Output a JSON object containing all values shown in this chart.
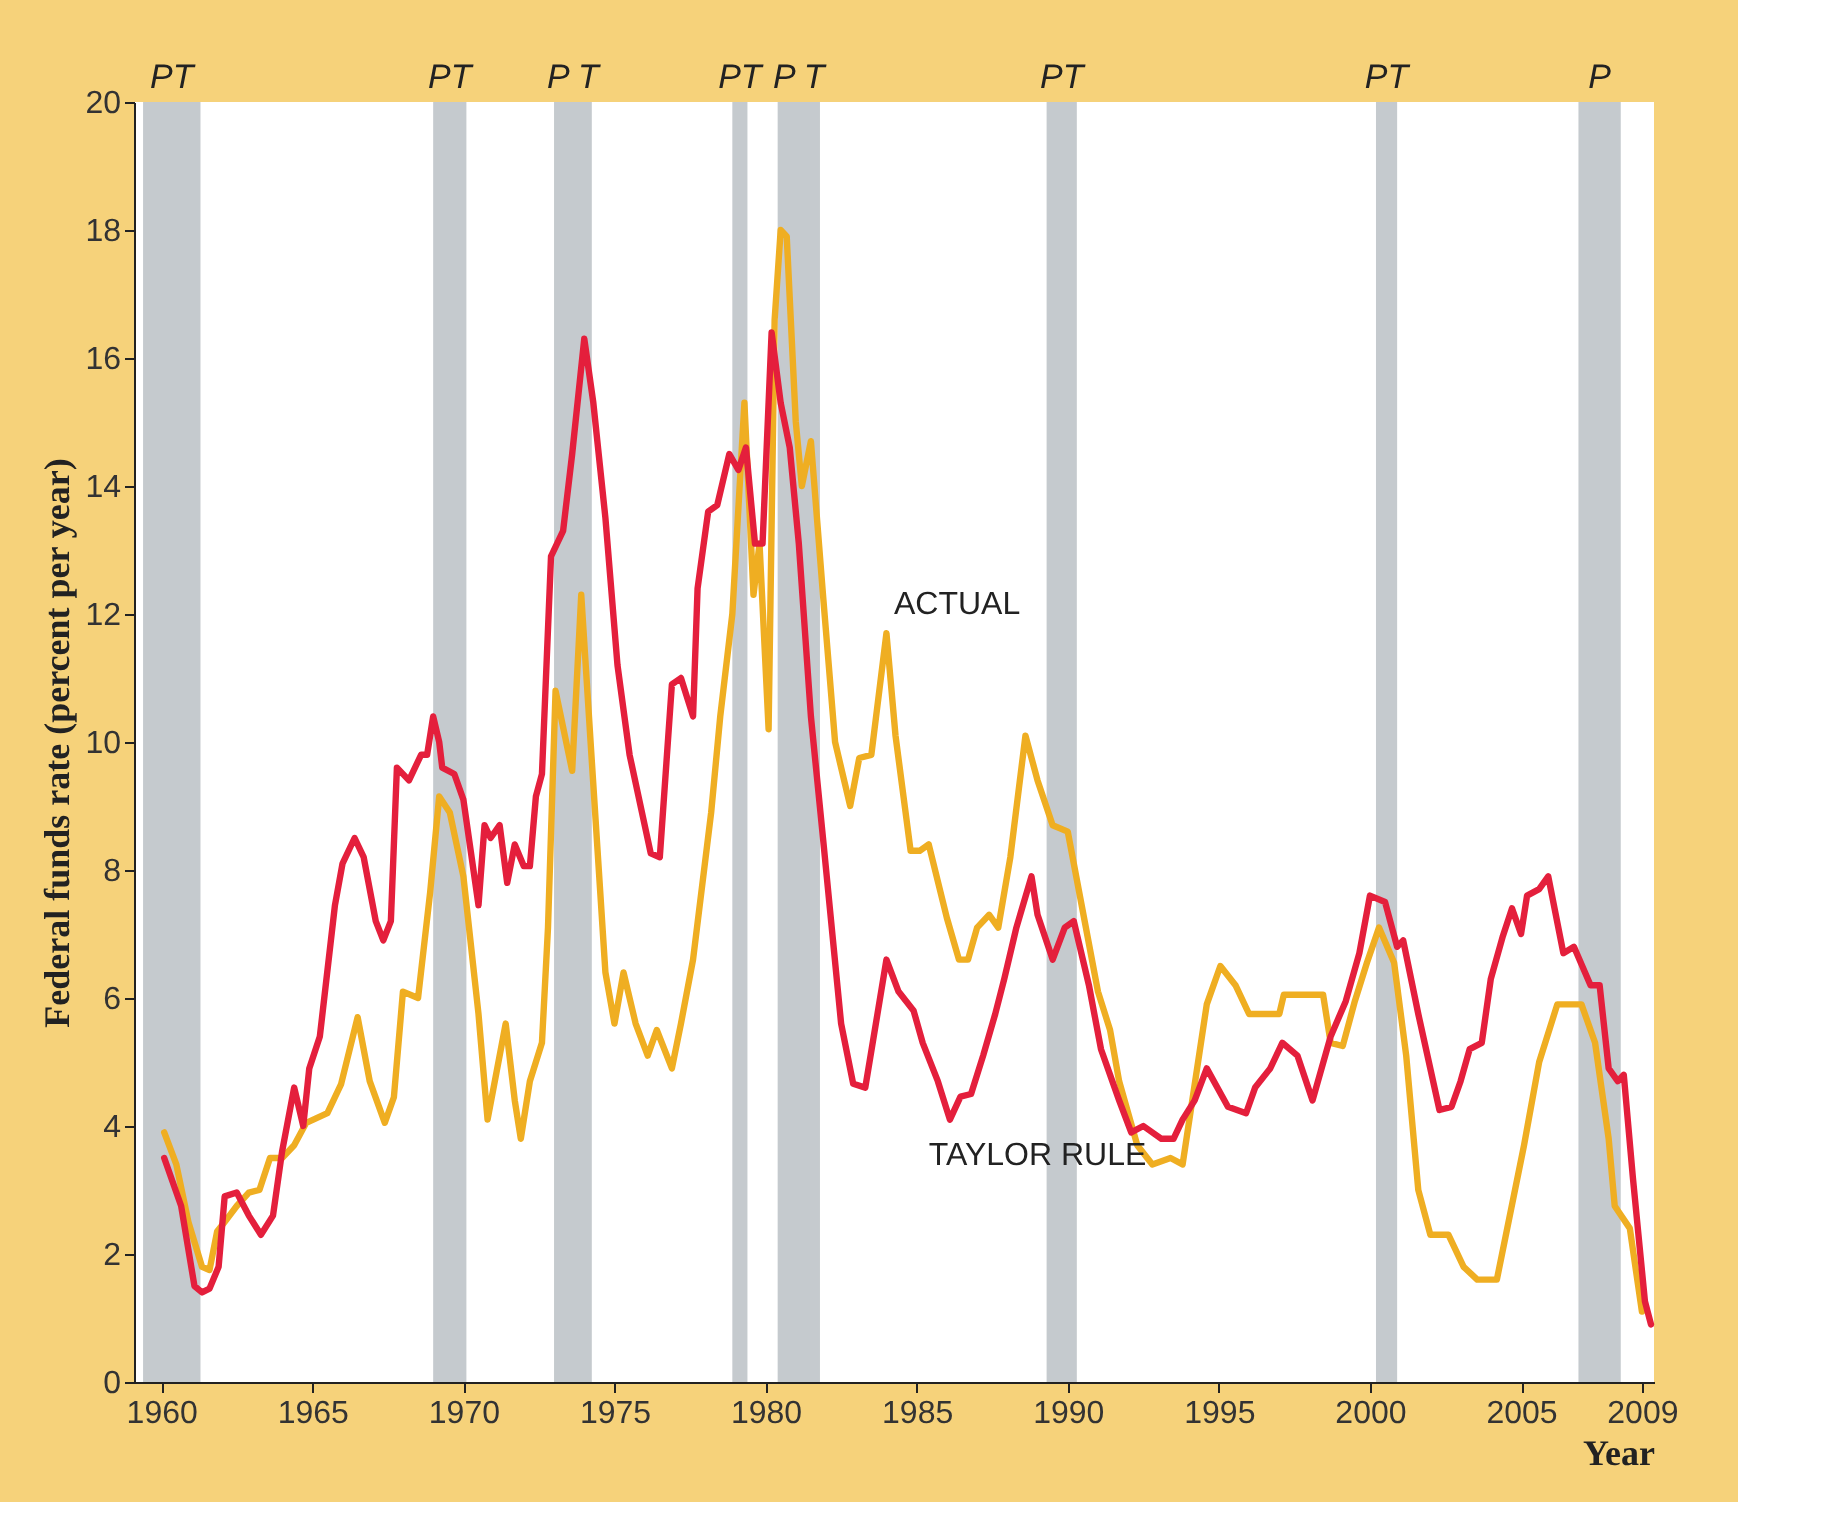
{
  "chart_data": {
    "type": "line",
    "xlabel": "Year",
    "ylabel": "Federal funds rate (percent per year)",
    "xlim": [
      1959.1,
      2009.4
    ],
    "xticks": [
      1960,
      1965,
      1970,
      1975,
      1980,
      1985,
      1990,
      1995,
      2000,
      2005,
      2009
    ],
    "ylim": [
      0,
      20
    ],
    "yticks": [
      0,
      2,
      4,
      6,
      8,
      10,
      12,
      14,
      16,
      18,
      20
    ],
    "grid": false,
    "marker": "none",
    "line_style": "solid",
    "bands": [
      {
        "axis": "x",
        "from": 1959.4,
        "to": 1961.3,
        "label": "PT",
        "color": "#c5cace"
      },
      {
        "axis": "x",
        "from": 1969.0,
        "to": 1970.1,
        "label": "PT",
        "color": "#c5cace"
      },
      {
        "axis": "x",
        "from": 1973.0,
        "to": 1974.25,
        "label": "P T",
        "color": "#c5cace"
      },
      {
        "axis": "x",
        "from": 1978.9,
        "to": 1979.4,
        "label": "PT",
        "color": "#c5cace"
      },
      {
        "axis": "x",
        "from": 1980.4,
        "to": 1981.8,
        "label": "P T",
        "color": "#c5cace"
      },
      {
        "axis": "x",
        "from": 1989.3,
        "to": 1990.3,
        "label": "PT",
        "color": "#c5cace"
      },
      {
        "axis": "x",
        "from": 2000.2,
        "to": 2000.9,
        "label": "PT",
        "color": "#c5cace"
      },
      {
        "axis": "x",
        "from": 2006.9,
        "to": 2008.3,
        "label": "P",
        "color": "#c5cace"
      }
    ],
    "series": [
      {
        "name": "ACTUAL",
        "color": "#efae22",
        "x": [
          1960.1,
          1960.5,
          1960.9,
          1961.35,
          1961.6,
          1961.85,
          1962.1,
          1962.5,
          1962.9,
          1963.25,
          1963.6,
          1964.0,
          1964.4,
          1964.8,
          1965.5,
          1965.95,
          1966.5,
          1966.9,
          1967.4,
          1967.7,
          1968.0,
          1968.5,
          1968.9,
          1969.2,
          1969.55,
          1970.0,
          1970.5,
          1970.8,
          1971.1,
          1971.4,
          1971.7,
          1971.9,
          1972.2,
          1972.6,
          1972.8,
          1973.05,
          1973.6,
          1973.9,
          1974.25,
          1974.7,
          1975.0,
          1975.3,
          1975.7,
          1976.1,
          1976.4,
          1976.9,
          1977.2,
          1977.6,
          1978.2,
          1978.5,
          1978.9,
          1979.3,
          1979.6,
          1979.8,
          1980.1,
          1980.3,
          1980.5,
          1980.7,
          1981.0,
          1981.2,
          1981.5,
          1981.9,
          1982.3,
          1982.8,
          1983.1,
          1983.5,
          1984.0,
          1984.3,
          1984.8,
          1985.1,
          1985.4,
          1986.0,
          1986.4,
          1986.7,
          1987.0,
          1987.4,
          1987.7,
          1988.1,
          1988.6,
          1989.0,
          1989.5,
          1990.0,
          1990.6,
          1991.0,
          1991.4,
          1991.7,
          1992.3,
          1992.8,
          1993.4,
          1993.8,
          1994.2,
          1994.6,
          1995.05,
          1995.55,
          1996.0,
          1996.6,
          1997.0,
          1997.15,
          1997.85,
          1998.45,
          1998.7,
          1999.1,
          1999.5,
          1999.9,
          2000.3,
          2000.8,
          2001.2,
          2001.6,
          2002.0,
          2002.6,
          2003.1,
          2003.55,
          2004.2,
          2005.1,
          2005.6,
          2006.2,
          2007.0,
          2007.45,
          2007.9,
          2008.1,
          2008.6,
          2009.0
        ],
        "values": [
          3.9,
          3.4,
          2.5,
          1.8,
          1.75,
          2.35,
          2.5,
          2.75,
          2.96,
          3.0,
          3.5,
          3.5,
          3.7,
          4.05,
          4.2,
          4.65,
          5.7,
          4.7,
          4.05,
          4.45,
          6.1,
          6.0,
          7.65,
          9.15,
          8.9,
          7.9,
          5.75,
          4.1,
          4.85,
          5.6,
          4.4,
          3.8,
          4.7,
          5.3,
          7.1,
          10.8,
          9.55,
          12.3,
          9.7,
          6.4,
          5.6,
          6.4,
          5.6,
          5.1,
          5.5,
          4.9,
          5.6,
          6.6,
          8.9,
          10.4,
          12.0,
          15.3,
          12.3,
          13.1,
          10.2,
          16.6,
          18.0,
          17.9,
          15.0,
          14.0,
          14.7,
          12.3,
          10.0,
          9.0,
          9.75,
          9.8,
          11.7,
          10.1,
          8.3,
          8.3,
          8.4,
          7.25,
          6.6,
          6.6,
          7.1,
          7.3,
          7.1,
          8.2,
          10.1,
          9.4,
          8.7,
          8.6,
          7.1,
          6.1,
          5.5,
          4.7,
          3.7,
          3.4,
          3.5,
          3.4,
          4.65,
          5.9,
          6.5,
          6.2,
          5.75,
          5.75,
          5.75,
          6.05,
          6.05,
          6.05,
          5.3,
          5.25,
          5.95,
          6.55,
          7.1,
          6.55,
          5.1,
          3.0,
          2.3,
          2.3,
          1.8,
          1.6,
          1.6,
          3.7,
          5.0,
          5.9,
          5.9,
          5.3,
          3.8,
          2.75,
          2.4,
          1.1
        ]
      },
      {
        "name": "TAYLOR RULE",
        "color": "#e41f3c",
        "x": [
          1960.1,
          1960.66,
          1961.1,
          1961.35,
          1961.6,
          1961.9,
          1962.1,
          1962.5,
          1962.9,
          1963.3,
          1963.7,
          1964.0,
          1964.4,
          1964.7,
          1964.9,
          1965.25,
          1965.75,
          1966.0,
          1966.4,
          1966.7,
          1967.1,
          1967.35,
          1967.6,
          1967.8,
          1968.2,
          1968.6,
          1968.8,
          1969.0,
          1969.2,
          1969.3,
          1969.7,
          1970.0,
          1970.5,
          1970.7,
          1970.9,
          1971.2,
          1971.45,
          1971.7,
          1972.0,
          1972.2,
          1972.4,
          1972.6,
          1972.9,
          1973.3,
          1973.6,
          1974.0,
          1974.3,
          1974.7,
          1975.1,
          1975.5,
          1976.2,
          1976.5,
          1976.9,
          1977.2,
          1977.6,
          1977.75,
          1978.1,
          1978.4,
          1978.8,
          1979.1,
          1979.35,
          1979.65,
          1979.9,
          1980.2,
          1980.5,
          1980.8,
          1981.1,
          1981.5,
          1981.9,
          1982.5,
          1982.9,
          1983.3,
          1984.0,
          1984.4,
          1984.9,
          1985.2,
          1985.7,
          1986.1,
          1986.45,
          1986.8,
          1987.2,
          1987.6,
          1987.9,
          1988.3,
          1988.8,
          1989.0,
          1989.5,
          1989.9,
          1990.2,
          1990.7,
          1991.1,
          1991.7,
          1992.1,
          1992.5,
          1993.1,
          1993.5,
          1993.8,
          1994.2,
          1994.6,
          1995.3,
          1995.9,
          1996.2,
          1996.7,
          1997.1,
          1997.6,
          1998.1,
          1998.7,
          1999.2,
          1999.65,
          2000.0,
          2000.5,
          2000.9,
          2001.1,
          2001.6,
          2002.3,
          2002.7,
          2003.0,
          2003.3,
          2003.7,
          2004.0,
          2004.4,
          2004.7,
          2005.0,
          2005.2,
          2005.6,
          2005.9,
          2006.4,
          2006.75,
          2007.3,
          2007.6,
          2007.9,
          2008.2,
          2008.4,
          2008.7,
          2009.1,
          2009.3
        ],
        "values": [
          3.5,
          2.75,
          1.5,
          1.4,
          1.46,
          1.8,
          2.9,
          2.96,
          2.6,
          2.3,
          2.6,
          3.6,
          4.6,
          4.0,
          4.9,
          5.4,
          7.45,
          8.1,
          8.5,
          8.2,
          7.2,
          6.9,
          7.2,
          9.6,
          9.4,
          9.8,
          9.8,
          10.4,
          10.0,
          9.6,
          9.5,
          9.1,
          7.45,
          8.7,
          8.5,
          8.7,
          7.8,
          8.4,
          8.06,
          8.06,
          9.15,
          9.5,
          12.9,
          13.3,
          14.5,
          16.3,
          15.3,
          13.5,
          11.2,
          9.8,
          8.26,
          8.2,
          10.9,
          11.0,
          10.4,
          12.4,
          13.6,
          13.7,
          14.5,
          14.25,
          14.6,
          13.1,
          13.1,
          16.4,
          15.3,
          14.6,
          13.1,
          10.4,
          8.5,
          5.6,
          4.66,
          4.6,
          6.6,
          6.1,
          5.8,
          5.3,
          4.7,
          4.1,
          4.46,
          4.5,
          5.1,
          5.75,
          6.3,
          7.1,
          7.9,
          7.3,
          6.6,
          7.1,
          7.2,
          6.2,
          5.2,
          4.4,
          3.9,
          4.0,
          3.8,
          3.8,
          4.1,
          4.4,
          4.9,
          4.3,
          4.2,
          4.6,
          4.9,
          5.3,
          5.1,
          4.4,
          5.4,
          5.95,
          6.7,
          7.6,
          7.5,
          6.8,
          6.9,
          5.75,
          4.25,
          4.3,
          4.7,
          5.2,
          5.3,
          6.3,
          6.97,
          7.4,
          7.0,
          7.6,
          7.7,
          7.9,
          6.7,
          6.8,
          6.2,
          6.2,
          4.9,
          4.7,
          4.8,
          3.2,
          1.26,
          0.9
        ]
      }
    ]
  }
}
